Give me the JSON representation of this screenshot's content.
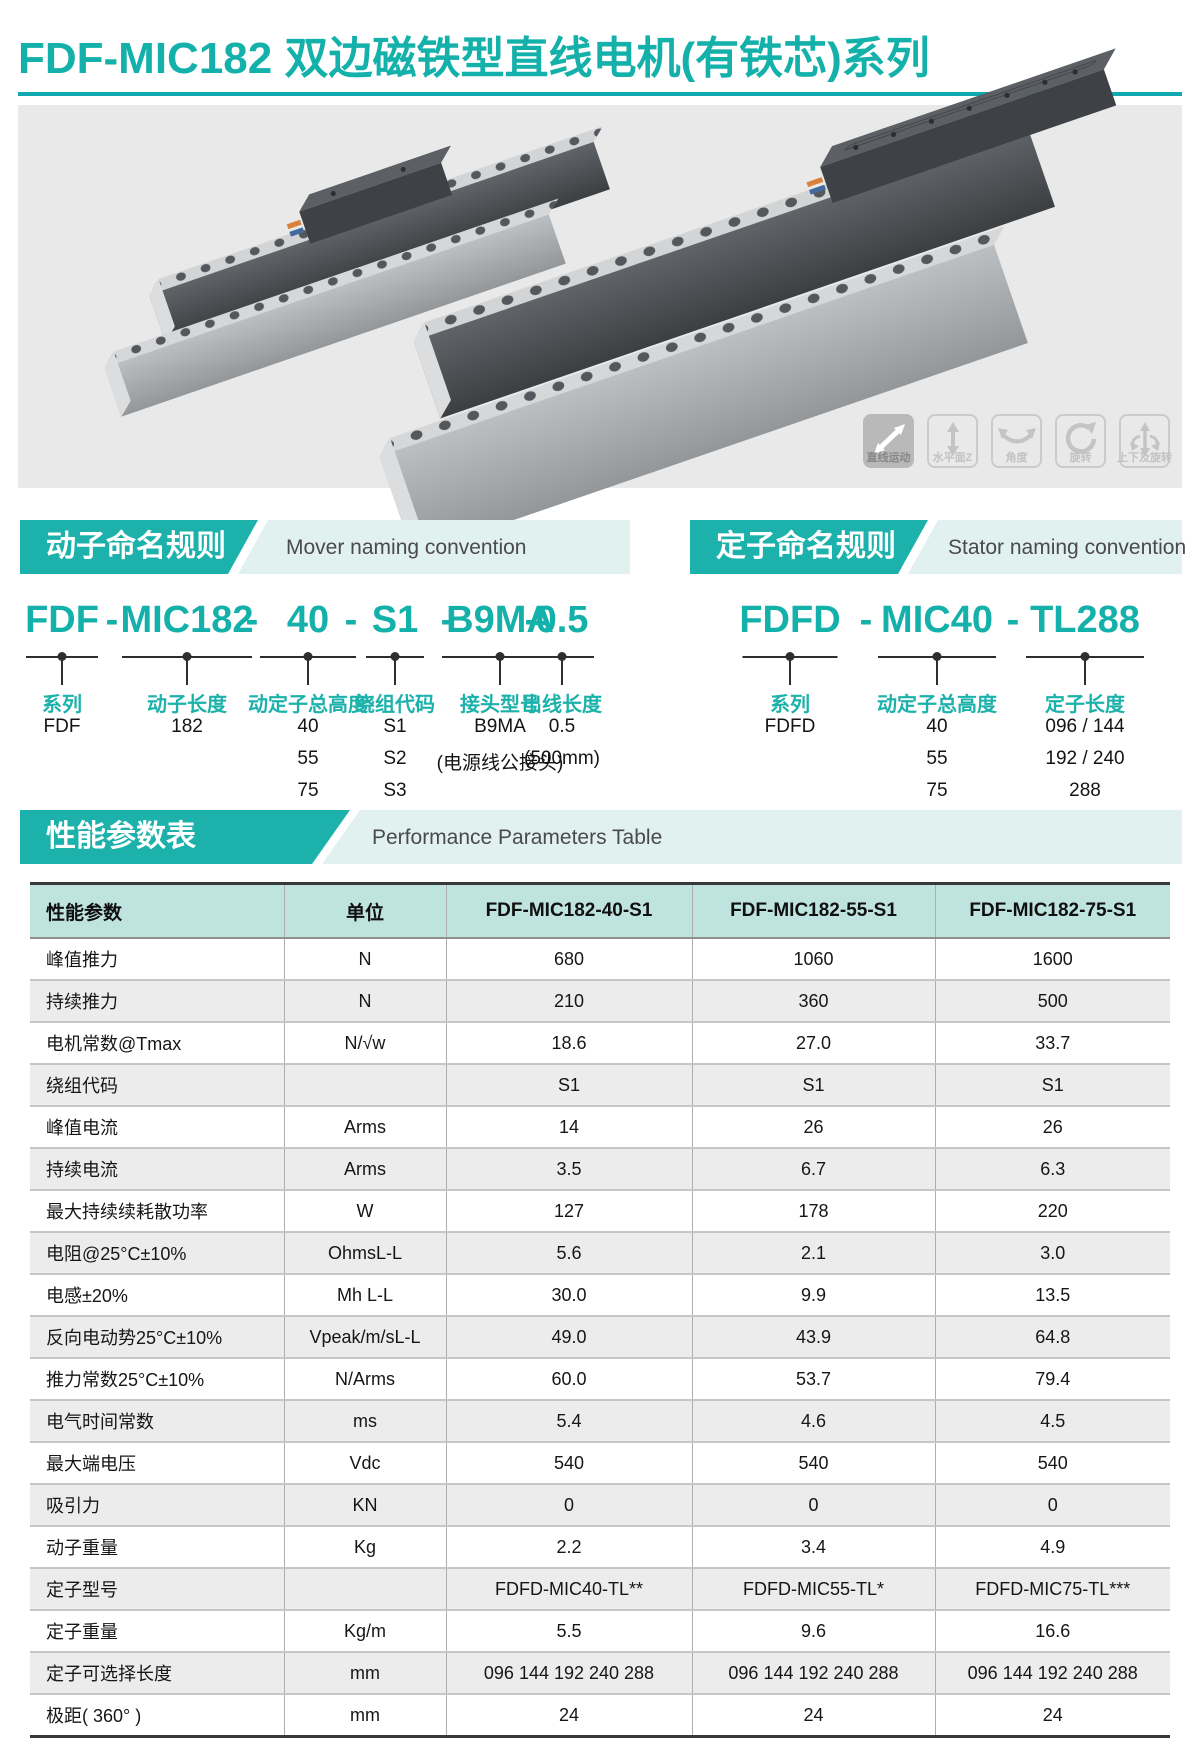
{
  "page_title": "FDF-MIC182 双边磁铁型直线电机(有铁芯)系列",
  "motion_icons": [
    {
      "icon": "linear-motion-icon",
      "label": "直线运动",
      "active": true
    },
    {
      "icon": "horizontal-z-icon",
      "label": "水平面Z",
      "active": false
    },
    {
      "icon": "angle-icon",
      "label": "角度",
      "active": false
    },
    {
      "icon": "rotation-icon",
      "label": "旋转",
      "active": false
    },
    {
      "icon": "updown-rotation-icon",
      "label": "上下及旋转",
      "active": false
    }
  ],
  "mover_section": {
    "title_zh": "动子命名规则",
    "title_en": "Mover naming convention",
    "separator": "-",
    "code_segments": [
      "FDF",
      "MIC182",
      "40",
      "S1",
      "B9MA",
      "0.5"
    ],
    "columns": [
      {
        "label": "系列",
        "values": [
          "FDF"
        ]
      },
      {
        "label": "动子长度",
        "values": [
          "182"
        ]
      },
      {
        "label": "动定子总高度",
        "values": [
          "40",
          "55",
          "75"
        ]
      },
      {
        "label": "绕组代码",
        "values": [
          "S1",
          "S2",
          "S3"
        ]
      },
      {
        "label": "接头型号",
        "values": [
          "B9MA",
          "(电源线公接头)"
        ]
      },
      {
        "label": "出线长度",
        "values": [
          "0.5",
          "(500mm)"
        ]
      }
    ]
  },
  "stator_section": {
    "title_zh": "定子命名规则",
    "title_en": "Stator naming convention",
    "separator": "-",
    "code_segments": [
      "FDFD",
      "MIC40",
      "TL288"
    ],
    "columns": [
      {
        "label": "系列",
        "values": [
          "FDFD"
        ]
      },
      {
        "label": "动定子总高度",
        "values": [
          "40",
          "55",
          "75"
        ]
      },
      {
        "label": "定子长度",
        "values": [
          "096 / 144",
          "192 / 240",
          "288"
        ]
      }
    ]
  },
  "performance": {
    "title_zh": "性能参数表",
    "title_en": "Performance Parameters Table",
    "headers": [
      "性能参数",
      "单位",
      "FDF-MIC182-40-S1",
      "FDF-MIC182-55-S1",
      "FDF-MIC182-75-S1"
    ],
    "rows": [
      [
        "峰值推力",
        "N",
        "680",
        "1060",
        "1600"
      ],
      [
        "持续推力",
        "N",
        "210",
        "360",
        "500"
      ],
      [
        "电机常数@Tmax",
        "N/√w",
        "18.6",
        "27.0",
        "33.7"
      ],
      [
        "绕组代码",
        "",
        "S1",
        "S1",
        "S1"
      ],
      [
        "峰值电流",
        "Arms",
        "14",
        "26",
        "26"
      ],
      [
        "持续电流",
        "Arms",
        "3.5",
        "6.7",
        "6.3"
      ],
      [
        "最大持续续耗散功率",
        "W",
        "127",
        "178",
        "220"
      ],
      [
        "电阻@25°C±10%",
        "OhmsL-L",
        "5.6",
        "2.1",
        "3.0"
      ],
      [
        "电感±20%",
        "Mh L-L",
        "30.0",
        "9.9",
        "13.5"
      ],
      [
        "反向电动势25°C±10%",
        "Vpeak/m/sL-L",
        "49.0",
        "43.9",
        "64.8"
      ],
      [
        "推力常数25°C±10%",
        "N/Arms",
        "60.0",
        "53.7",
        "79.4"
      ],
      [
        "电气时间常数",
        "ms",
        "5.4",
        "4.6",
        "4.5"
      ],
      [
        "最大端电压",
        "Vdc",
        "540",
        "540",
        "540"
      ],
      [
        "吸引力",
        "KN",
        "0",
        "0",
        "0"
      ],
      [
        "动子重量",
        "Kg",
        "2.2",
        "3.4",
        "4.9"
      ],
      [
        "定子型号",
        "",
        "FDFD-MIC40-TL**",
        "FDFD-MIC55-TL*",
        "FDFD-MIC75-TL***"
      ],
      [
        "定子重量",
        "Kg/m",
        "5.5",
        "9.6",
        "16.6"
      ],
      [
        "定子可选择长度",
        "mm",
        "096 144 192 240 288",
        "096 144 192 240 288",
        "096 144 192 240 288"
      ],
      [
        "极距( 360° )",
        "mm",
        "24",
        "24",
        "24"
      ]
    ]
  },
  "colors": {
    "accent_teal": "#1cb2ab",
    "title_teal": "#14b0aa",
    "band_mint": "#e1f1ef",
    "table_header_bg": "#bfe4e0",
    "row_alt_gray": "#ececec",
    "panel_gray": "#e9e9e9"
  }
}
